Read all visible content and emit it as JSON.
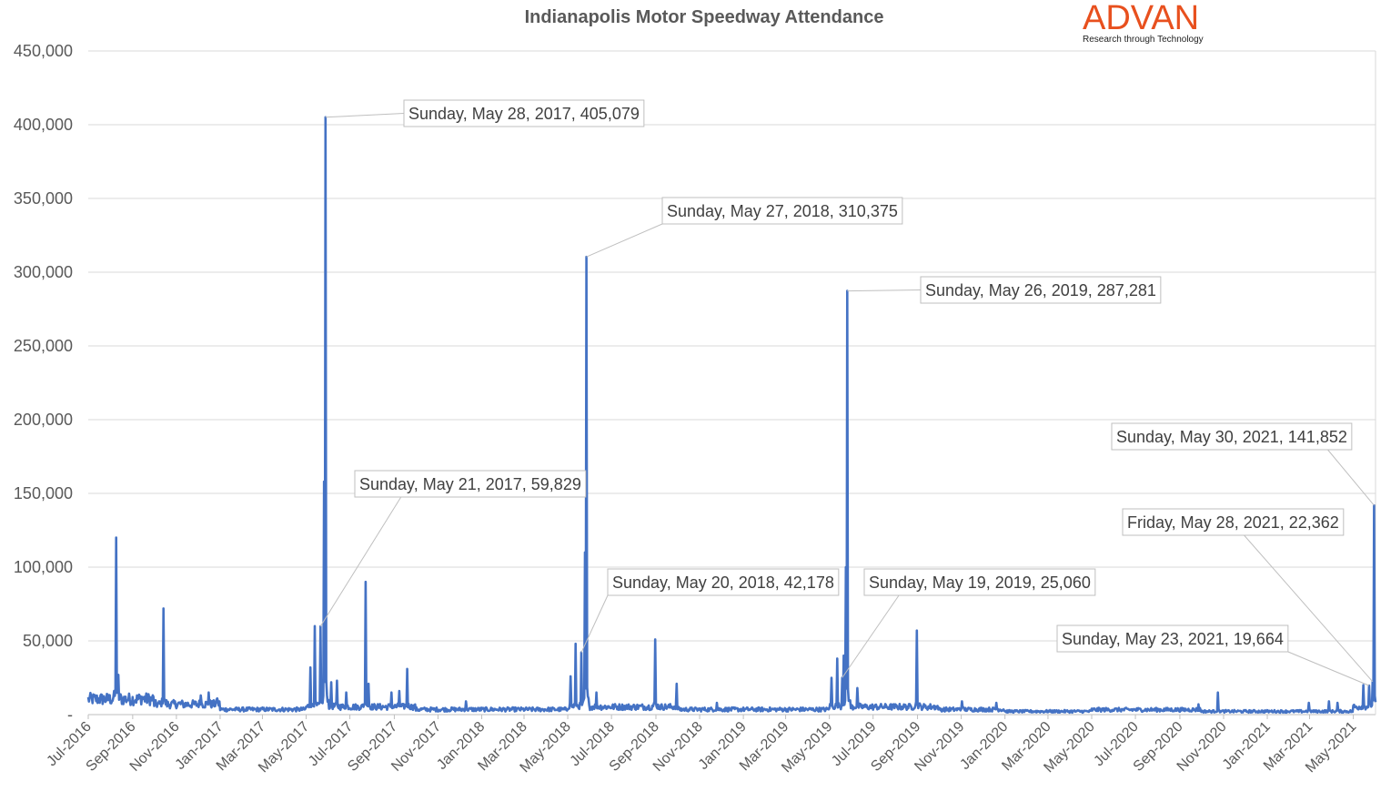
{
  "logo": {
    "word": "ADVAN",
    "tagline": "Research through Technology"
  },
  "chart_data": {
    "type": "line",
    "title": "Indianapolis Motor Speedway Attendance",
    "xlabel": "",
    "ylabel": "",
    "ylim": [
      0,
      450000
    ],
    "yticks": [
      "-",
      "50,000",
      "100,000",
      "150,000",
      "200,000",
      "250,000",
      "300,000",
      "350,000",
      "400,000",
      "450,000"
    ],
    "xticks": [
      "Jul-2016",
      "Sep-2016",
      "Nov-2016",
      "Jan-2017",
      "Mar-2017",
      "May-2017",
      "Jul-2017",
      "Sep-2017",
      "Nov-2017",
      "Jan-2018",
      "Mar-2018",
      "May-2018",
      "Jul-2018",
      "Sep-2018",
      "Nov-2018",
      "Jan-2019",
      "Mar-2019",
      "May-2019",
      "Jul-2019",
      "Sep-2019",
      "Nov-2019",
      "Jan-2020",
      "Mar-2020",
      "May-2020",
      "Jul-2020",
      "Sep-2020",
      "Nov-2020",
      "Jan-2021",
      "Mar-2021",
      "May-2021"
    ],
    "xrange": [
      "2016-07-01",
      "2021-06-01"
    ],
    "grid": true,
    "series_color": "#4472c4",
    "peaks": [
      {
        "date": "2016-08-09",
        "value": 120000
      },
      {
        "date": "2016-08-12",
        "value": 27000
      },
      {
        "date": "2016-09-14",
        "value": 12000
      },
      {
        "date": "2016-10-14",
        "value": 72000
      },
      {
        "date": "2016-11-05",
        "value": 8000
      },
      {
        "date": "2016-12-05",
        "value": 13000
      },
      {
        "date": "2016-12-16",
        "value": 15000
      },
      {
        "date": "2016-12-28",
        "value": 11000
      },
      {
        "date": "2017-05-07",
        "value": 32000
      },
      {
        "date": "2017-05-13",
        "value": 60000
      },
      {
        "date": "2017-05-21",
        "value": 59829
      },
      {
        "date": "2017-05-26",
        "value": 158000
      },
      {
        "date": "2017-05-28",
        "value": 405079
      },
      {
        "date": "2017-06-05",
        "value": 22000
      },
      {
        "date": "2017-06-13",
        "value": 23000
      },
      {
        "date": "2017-06-26",
        "value": 15000
      },
      {
        "date": "2017-07-23",
        "value": 90000
      },
      {
        "date": "2017-07-27",
        "value": 21000
      },
      {
        "date": "2017-08-28",
        "value": 15000
      },
      {
        "date": "2017-09-08",
        "value": 16000
      },
      {
        "date": "2017-09-19",
        "value": 31000
      },
      {
        "date": "2017-12-10",
        "value": 9000
      },
      {
        "date": "2018-05-05",
        "value": 26000
      },
      {
        "date": "2018-05-12",
        "value": 48000
      },
      {
        "date": "2018-05-20",
        "value": 42178
      },
      {
        "date": "2018-05-25",
        "value": 110000
      },
      {
        "date": "2018-05-27",
        "value": 310375
      },
      {
        "date": "2018-06-10",
        "value": 15000
      },
      {
        "date": "2018-08-31",
        "value": 51000
      },
      {
        "date": "2018-09-30",
        "value": 21000
      },
      {
        "date": "2018-11-25",
        "value": 8000
      },
      {
        "date": "2019-05-04",
        "value": 25000
      },
      {
        "date": "2019-05-12",
        "value": 38000
      },
      {
        "date": "2019-05-19",
        "value": 25060
      },
      {
        "date": "2019-05-21",
        "value": 40000
      },
      {
        "date": "2019-05-24",
        "value": 100000
      },
      {
        "date": "2019-05-26",
        "value": 287281
      },
      {
        "date": "2019-06-09",
        "value": 18000
      },
      {
        "date": "2019-08-31",
        "value": 57000
      },
      {
        "date": "2019-11-02",
        "value": 9000
      },
      {
        "date": "2019-12-20",
        "value": 8000
      },
      {
        "date": "2020-09-27",
        "value": 7000
      },
      {
        "date": "2020-10-24",
        "value": 15000
      },
      {
        "date": "2021-02-28",
        "value": 8000
      },
      {
        "date": "2021-03-28",
        "value": 9000
      },
      {
        "date": "2021-04-09",
        "value": 8000
      },
      {
        "date": "2021-05-15",
        "value": 20000
      },
      {
        "date": "2021-05-23",
        "value": 19664
      },
      {
        "date": "2021-05-28",
        "value": 22362
      },
      {
        "date": "2021-05-30",
        "value": 141852
      }
    ],
    "annotations": [
      {
        "label": "Sunday, May 28, 2017,  405,079",
        "date": "2017-05-28",
        "value": 405079
      },
      {
        "label": "Sunday, May 27, 2018,  310,375",
        "date": "2018-05-27",
        "value": 310375
      },
      {
        "label": "Sunday, May 26, 2019,  287,281",
        "date": "2019-05-26",
        "value": 287281
      },
      {
        "label": "Sunday, May 21, 2017,  59,829",
        "date": "2017-05-21",
        "value": 59829
      },
      {
        "label": "Sunday, May 20, 2018,  42,178",
        "date": "2018-05-20",
        "value": 42178
      },
      {
        "label": "Sunday, May 19, 2019,  25,060",
        "date": "2019-05-19",
        "value": 25060
      },
      {
        "label": "Sunday, May 30, 2021,  141,852",
        "date": "2021-05-30",
        "value": 141852
      },
      {
        "label": "Friday, May 28, 2021,  22,362",
        "date": "2021-05-28",
        "value": 22362
      },
      {
        "label": "Sunday, May 23, 2021,  19,664",
        "date": "2021-05-23",
        "value": 19664
      }
    ]
  }
}
